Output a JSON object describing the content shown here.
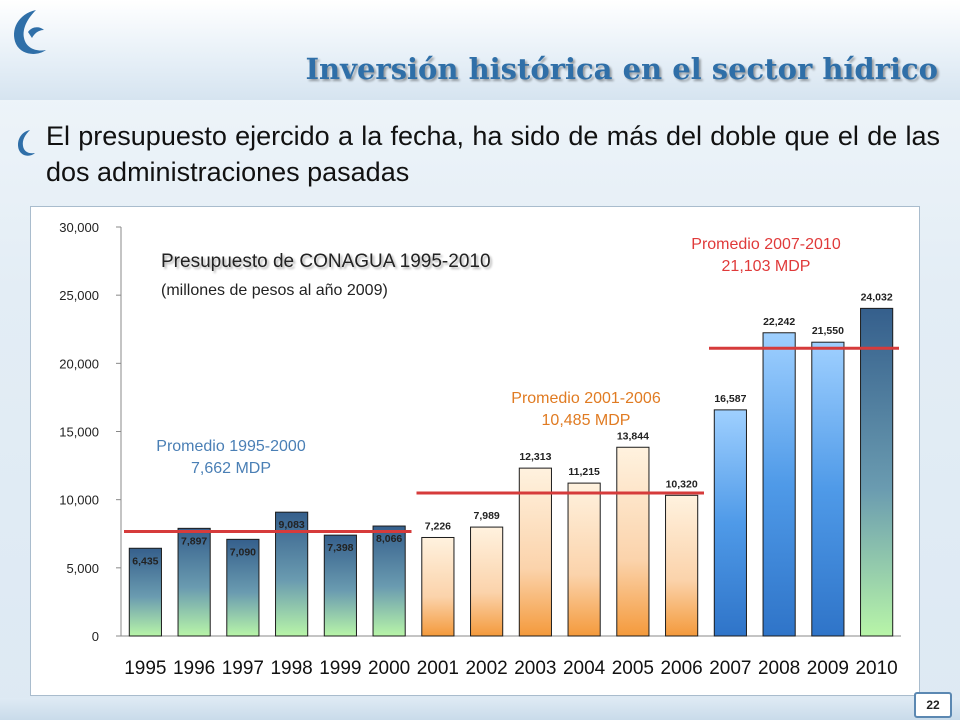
{
  "slide": {
    "title": "Inversión histórica en el sector hídrico",
    "bullet": "El presupuesto ejercido a la fecha, ha sido de más del doble que el de las dos administraciones pasadas",
    "page_number": "22"
  },
  "colors": {
    "title": "#2f6fa8",
    "avg_line": "#d63b3b",
    "avg_label_blue": "#4a7fb5",
    "avg_label_orange": "#e07b22",
    "avg_label_red": "#e03a3a"
  },
  "chart_data": {
    "type": "bar",
    "title": "Presupuesto de CONAGUA 1995-2010",
    "subtitle": "(millones de pesos al año 2009)",
    "categories": [
      "1995",
      "1996",
      "1997",
      "1998",
      "1999",
      "2000",
      "2001",
      "2002",
      "2003",
      "2004",
      "2005",
      "2006",
      "2007",
      "2008",
      "2009",
      "2010"
    ],
    "values": [
      6435,
      7897,
      7090,
      9083,
      7398,
      8066,
      7226,
      7989,
      12313,
      11215,
      13844,
      10320,
      16587,
      22242,
      21550,
      24032
    ],
    "value_labels": [
      "6,435",
      "7,897",
      "7,090",
      "9,083",
      "7,398",
      "8,066",
      "7,226",
      "7,989",
      "12,313",
      "11,215",
      "13,844",
      "10,320",
      "16,587",
      "22,242",
      "21,550",
      "24,032"
    ],
    "y_ticks": [
      "0",
      "5,000",
      "10,000",
      "15,000",
      "20,000",
      "25,000",
      "30,000"
    ],
    "ylim": [
      0,
      30000
    ],
    "groups": [
      {
        "start": 0,
        "end": 5,
        "style": "green-blue"
      },
      {
        "start": 6,
        "end": 11,
        "style": "orange"
      },
      {
        "start": 12,
        "end": 14,
        "style": "blue"
      },
      {
        "start": 15,
        "end": 15,
        "style": "green-blue"
      }
    ],
    "averages": [
      {
        "line1": "Promedio 1995-2000",
        "line2": "7,662 MDP",
        "value": 7662,
        "start": 0,
        "end": 5,
        "color_key": "avg_label_blue"
      },
      {
        "line1": "Promedio 2001-2006",
        "line2": "10,485 MDP",
        "value": 10485,
        "start": 6,
        "end": 11,
        "color_key": "avg_label_orange"
      },
      {
        "line1": "Promedio 2007-2010",
        "line2": "21,103 MDP",
        "value": 21103,
        "start": 12,
        "end": 15,
        "color_key": "avg_label_red"
      }
    ]
  }
}
